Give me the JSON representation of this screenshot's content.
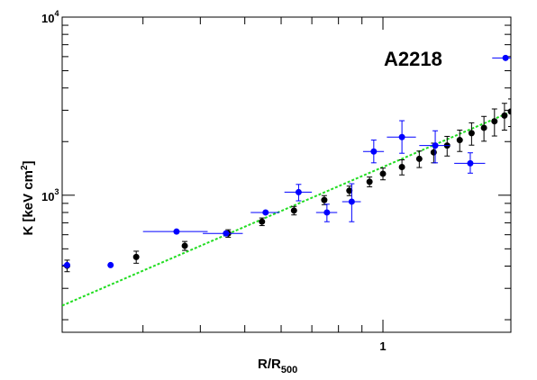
{
  "chart_data": {
    "type": "scatter",
    "title": "A2218",
    "xlabel_main": "R/R",
    "xlabel_sub": "500",
    "ylabel_main": "K [keV cm",
    "ylabel_sup": "2",
    "ylabel_end": "]",
    "x_scale": "log",
    "y_scale": "log",
    "xlim": [
      0.2,
      1.9
    ],
    "ylim": [
      170,
      10000
    ],
    "x_tick_labels": [
      {
        "value": 1,
        "text": "1"
      }
    ],
    "y_tick_labels": [
      {
        "value": 1000,
        "base": "10",
        "exp": "3"
      },
      {
        "value": 10000,
        "base": "10",
        "exp": "4"
      }
    ],
    "grid": false,
    "series": [
      {
        "color": "#000000",
        "points": [
          {
            "x": 0.205,
            "y": 402,
            "yerr": [
              30,
              30
            ]
          },
          {
            "x": 0.29,
            "y": 450,
            "yerr": [
              35,
              35
            ]
          },
          {
            "x": 0.37,
            "y": 520,
            "yerr": [
              30,
              30
            ]
          },
          {
            "x": 0.46,
            "y": 610,
            "yerr": [
              30,
              30
            ]
          },
          {
            "x": 0.545,
            "y": 710,
            "yerr": [
              35,
              35
            ]
          },
          {
            "x": 0.64,
            "y": 820,
            "yerr": [
              45,
              45
            ]
          },
          {
            "x": 0.745,
            "y": 940,
            "yerr": [
              55,
              55
            ]
          },
          {
            "x": 0.845,
            "y": 1060,
            "yerr": [
              65,
              65
            ]
          },
          {
            "x": 0.935,
            "y": 1190,
            "yerr": [
              75,
              75
            ]
          },
          {
            "x": 1.0,
            "y": 1320,
            "yerr": [
              100,
              100
            ]
          },
          {
            "x": 1.1,
            "y": 1440,
            "yerr": [
              140,
              140
            ]
          },
          {
            "x": 1.2,
            "y": 1600,
            "yerr": [
              170,
              170
            ]
          },
          {
            "x": 1.29,
            "y": 1740,
            "yerr": [
              220,
              220
            ]
          },
          {
            "x": 1.38,
            "y": 1900,
            "yerr": [
              240,
              240
            ]
          },
          {
            "x": 1.47,
            "y": 2040,
            "yerr": [
              280,
              280
            ]
          },
          {
            "x": 1.56,
            "y": 2230,
            "yerr": [
              320,
              320
            ]
          },
          {
            "x": 1.66,
            "y": 2390,
            "yerr": [
              380,
              380
            ]
          },
          {
            "x": 1.75,
            "y": 2600,
            "yerr": [
              450,
              450
            ]
          },
          {
            "x": 1.84,
            "y": 2800,
            "yerr": [
              480,
              480
            ]
          },
          {
            "x": 1.9,
            "y": 2950,
            "yerr": [
              520,
              520
            ]
          }
        ]
      },
      {
        "color": "#0000ff",
        "points": [
          {
            "x": 0.205,
            "y": 405,
            "xerr": [
              0.14,
              0.0
            ],
            "yerr": [
              0,
              0
            ]
          },
          {
            "x": 0.255,
            "y": 405,
            "xerr": [
              0.0,
              0.0
            ],
            "yerr": [
              0,
              0
            ]
          },
          {
            "x": 0.355,
            "y": 625,
            "xerr": [
              0.055,
              0.06
            ],
            "yerr": [
              0,
              0
            ]
          },
          {
            "x": 0.455,
            "y": 610,
            "xerr": [
              0.05,
              0.04
            ],
            "yerr": [
              0,
              0
            ]
          },
          {
            "x": 0.555,
            "y": 800,
            "xerr": [
              0.04,
              0.04
            ],
            "yerr": [
              0,
              0
            ]
          },
          {
            "x": 0.655,
            "y": 1040,
            "xerr": [
              0.045,
              0.045
            ],
            "yerr": [
              110,
              110
            ]
          },
          {
            "x": 0.755,
            "y": 800,
            "xerr": [
              0.04,
              0.04
            ],
            "yerr": [
              90,
              90
            ]
          },
          {
            "x": 0.855,
            "y": 920,
            "xerr": [
              0.04,
              0.04
            ],
            "yerr": [
              210,
              240
            ]
          },
          {
            "x": 0.955,
            "y": 1760,
            "xerr": [
              0.05,
              0.05
            ],
            "yerr": [
              240,
              280
            ]
          },
          {
            "x": 1.1,
            "y": 2120,
            "xerr": [
              0.08,
              0.08
            ],
            "yerr": [
              400,
              500
            ]
          },
          {
            "x": 1.3,
            "y": 1900,
            "xerr": [
              0.1,
              0.1
            ],
            "yerr": [
              380,
              400
            ]
          },
          {
            "x": 1.55,
            "y": 1510,
            "xerr": [
              0.12,
              0.12
            ],
            "yerr": [
              180,
              220
            ]
          },
          {
            "x": 1.85,
            "y": 5900,
            "xerr": [
              0.12,
              0.05
            ],
            "yerr": [
              0,
              0
            ]
          }
        ]
      }
    ],
    "fit_line": {
      "color": "#22dd22",
      "style": "dotted",
      "points": [
        [
          0.2,
          240
        ],
        [
          1.9,
          2940
        ]
      ]
    }
  }
}
